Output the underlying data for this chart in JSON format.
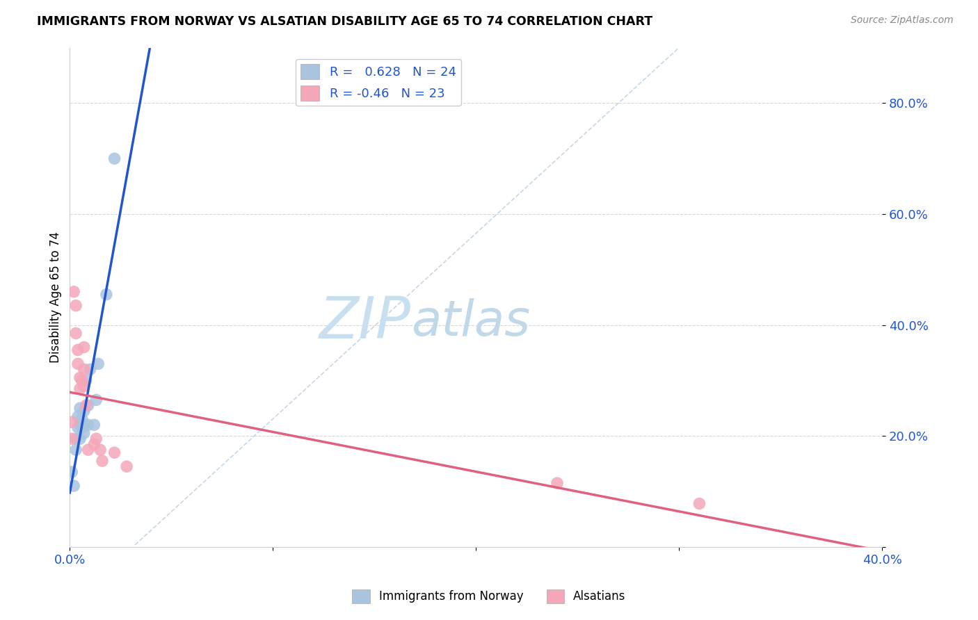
{
  "title": "IMMIGRANTS FROM NORWAY VS ALSATIAN DISABILITY AGE 65 TO 74 CORRELATION CHART",
  "source": "Source: ZipAtlas.com",
  "ylabel": "Disability Age 65 to 74",
  "norway_r": 0.628,
  "norway_n": 24,
  "alsatian_r": -0.46,
  "alsatian_n": 23,
  "norway_color": "#a8c4e0",
  "alsatian_color": "#f4a7b9",
  "norway_line_color": "#2255cc",
  "alsatian_line_color": "#e06080",
  "norway_scatter_x": [
    0.001,
    0.002,
    0.003,
    0.003,
    0.004,
    0.004,
    0.005,
    0.005,
    0.005,
    0.006,
    0.006,
    0.006,
    0.007,
    0.007,
    0.007,
    0.008,
    0.009,
    0.009,
    0.01,
    0.012,
    0.013,
    0.014,
    0.018,
    0.022
  ],
  "norway_scatter_y": [
    0.135,
    0.11,
    0.195,
    0.175,
    0.215,
    0.235,
    0.195,
    0.22,
    0.25,
    0.215,
    0.22,
    0.23,
    0.205,
    0.22,
    0.245,
    0.3,
    0.255,
    0.22,
    0.32,
    0.22,
    0.265,
    0.33,
    0.455,
    0.7
  ],
  "alsatian_scatter_x": [
    0.001,
    0.001,
    0.002,
    0.003,
    0.003,
    0.004,
    0.004,
    0.005,
    0.005,
    0.006,
    0.007,
    0.007,
    0.007,
    0.008,
    0.009,
    0.012,
    0.013,
    0.015,
    0.016,
    0.022,
    0.028,
    0.24,
    0.31
  ],
  "alsatian_scatter_y": [
    0.195,
    0.225,
    0.46,
    0.435,
    0.385,
    0.33,
    0.355,
    0.285,
    0.305,
    0.3,
    0.29,
    0.32,
    0.36,
    0.255,
    0.175,
    0.185,
    0.195,
    0.175,
    0.155,
    0.17,
    0.145,
    0.115,
    0.078
  ],
  "xlim": [
    0.0,
    0.4
  ],
  "ylim": [
    0.0,
    0.9
  ],
  "y_ticks": [
    0.0,
    0.2,
    0.4,
    0.6,
    0.8
  ],
  "y_tick_labels": [
    "",
    "20.0%",
    "40.0%",
    "60.0%",
    "80.0%"
  ],
  "x_ticks": [
    0.0,
    0.1,
    0.2,
    0.3,
    0.4
  ],
  "x_tick_labels": [
    "0.0%",
    "",
    "",
    "",
    "40.0%"
  ],
  "grid_color": "#cccccc",
  "background_color": "#ffffff",
  "watermark_zip": "ZIP",
  "watermark_atlas": "atlas",
  "watermark_color_zip": "#c8dff0",
  "watermark_color_atlas": "#c0d8e8",
  "watermark_fontsize": 60,
  "diag_line_color": "#b8cce0",
  "legend_label_color": "#2255cc"
}
